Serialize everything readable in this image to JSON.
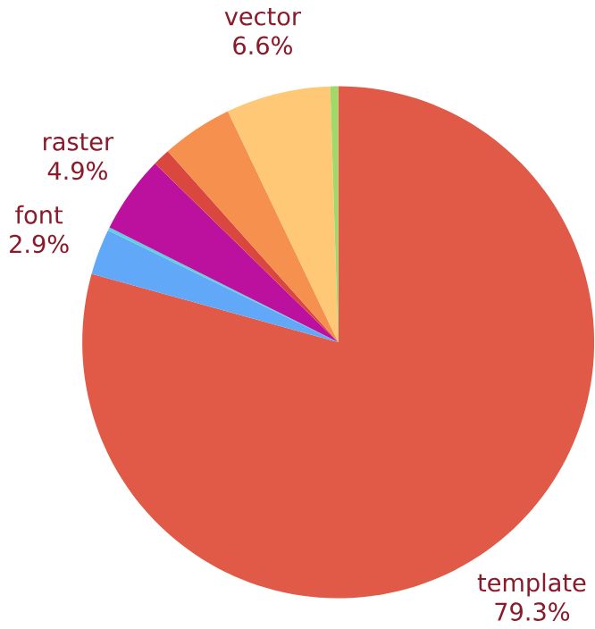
{
  "chart_data": {
    "type": "pie",
    "categories": [
      "template",
      "font",
      null,
      "raster",
      null,
      null,
      "vector",
      null
    ],
    "values": [
      79.3,
      2.9,
      0.2,
      4.9,
      1.1,
      4.5,
      6.6,
      0.5
    ],
    "colors": [
      "#e05a47",
      "#62a8f8",
      "#5fd0e0",
      "#bb119e",
      "#d9473f",
      "#f5904f",
      "#fec877",
      "#a0d86a"
    ],
    "value_labels": [
      "79.3%",
      "2.9%",
      null,
      "4.9%",
      null,
      null,
      "6.6%",
      null
    ]
  }
}
